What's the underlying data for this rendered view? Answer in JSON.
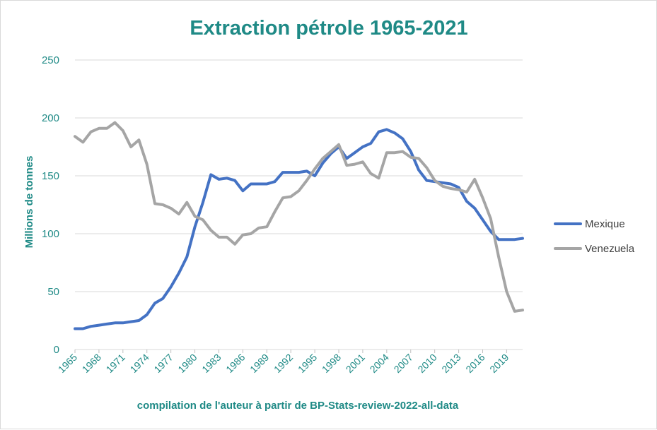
{
  "chart_data": {
    "type": "line",
    "title": "Extraction pétrole 1965-2021",
    "xlabel": "compilation de l'auteur à partir de BP-Stats-review-2022-all-data",
    "ylabel": "Millions de tonnes",
    "ylim": [
      0,
      250
    ],
    "yticks": [
      "0",
      "50",
      "100",
      "150",
      "200",
      "250"
    ],
    "xticks": [
      "1965",
      "1968",
      "1971",
      "1974",
      "1977",
      "1980",
      "1983",
      "1986",
      "1989",
      "1992",
      "1995",
      "1998",
      "2001",
      "2004",
      "2007",
      "2010",
      "2013",
      "2016",
      "2019"
    ],
    "grid": true,
    "legend_position": "right",
    "x": [
      1965,
      1966,
      1967,
      1968,
      1969,
      1970,
      1971,
      1972,
      1973,
      1974,
      1975,
      1976,
      1977,
      1978,
      1979,
      1980,
      1981,
      1982,
      1983,
      1984,
      1985,
      1986,
      1987,
      1988,
      1989,
      1990,
      1991,
      1992,
      1993,
      1994,
      1995,
      1996,
      1997,
      1998,
      1999,
      2000,
      2001,
      2002,
      2003,
      2004,
      2005,
      2006,
      2007,
      2008,
      2009,
      2010,
      2011,
      2012,
      2013,
      2014,
      2015,
      2016,
      2017,
      2018,
      2019,
      2020,
      2021
    ],
    "series": [
      {
        "name": "Mexique",
        "color": "#4472c4",
        "values": [
          18,
          18,
          20,
          21,
          22,
          23,
          23,
          24,
          25,
          30,
          40,
          44,
          54,
          66,
          80,
          106,
          127,
          151,
          147,
          148,
          146,
          137,
          143,
          143,
          143,
          145,
          153,
          153,
          153,
          154,
          150,
          161,
          169,
          175,
          165,
          170,
          175,
          178,
          188,
          190,
          187,
          182,
          171,
          155,
          146,
          145,
          144,
          143,
          140,
          128,
          122,
          112,
          102,
          95,
          95,
          95,
          96
        ]
      },
      {
        "name": "Venezuela",
        "color": "#a5a5a5",
        "values": [
          184,
          179,
          188,
          191,
          191,
          196,
          189,
          175,
          181,
          160,
          126,
          125,
          122,
          117,
          127,
          115,
          112,
          103,
          97,
          97,
          91,
          99,
          100,
          105,
          106,
          119,
          131,
          132,
          137,
          146,
          156,
          165,
          171,
          177,
          159,
          160,
          162,
          152,
          148,
          170,
          170,
          171,
          166,
          165,
          157,
          146,
          141,
          139,
          138,
          136,
          147,
          131,
          113,
          80,
          50,
          33,
          34
        ]
      }
    ]
  }
}
